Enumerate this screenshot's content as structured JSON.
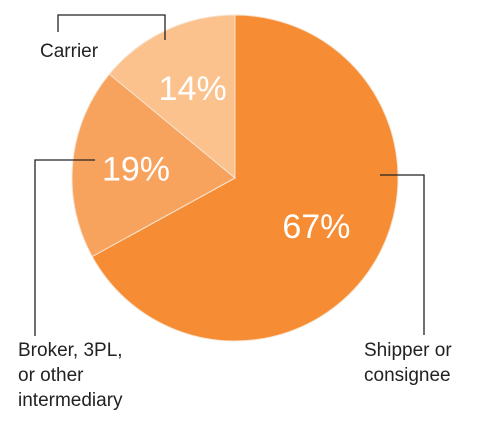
{
  "chart_data": {
    "type": "pie",
    "slices": [
      {
        "label_lines": [
          "Shipper or",
          "consignee"
        ],
        "value": 67,
        "value_text": "67%",
        "color": "#f68c33"
      },
      {
        "label_lines": [
          "Broker, 3PL,",
          "or other",
          "intermediary"
        ],
        "value": 19,
        "value_text": "19%",
        "color": "#f8a35d"
      },
      {
        "label_lines": [
          "Carrier"
        ],
        "value": 14,
        "value_text": "14%",
        "color": "#fbc28e"
      }
    ],
    "start_angle_deg": 0,
    "direction": "clockwise"
  }
}
